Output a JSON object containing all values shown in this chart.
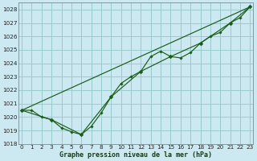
{
  "xlabel": "Graphe pression niveau de la mer (hPa)",
  "background_color": "#cce8f0",
  "grid_color": "#99cccc",
  "line_color": "#1a5c1a",
  "ylim": [
    1018,
    1028.5
  ],
  "xlim": [
    -0.3,
    23.3
  ],
  "yticks": [
    1018,
    1019,
    1020,
    1021,
    1022,
    1023,
    1024,
    1025,
    1026,
    1027,
    1028
  ],
  "xticks": [
    0,
    1,
    2,
    3,
    4,
    5,
    6,
    7,
    8,
    9,
    10,
    11,
    12,
    13,
    14,
    15,
    16,
    17,
    18,
    19,
    20,
    21,
    22,
    23
  ],
  "series_hourly": {
    "x": [
      0,
      1,
      2,
      3,
      4,
      5,
      6,
      7,
      8,
      9,
      10,
      11,
      12,
      13,
      14,
      15,
      16,
      17,
      18,
      19,
      20,
      21,
      22,
      23
    ],
    "y": [
      1020.5,
      1020.5,
      1020.0,
      1019.8,
      1019.2,
      1018.9,
      1018.7,
      1019.3,
      1020.3,
      1021.5,
      1022.5,
      1023.0,
      1023.4,
      1024.5,
      1024.9,
      1024.5,
      1024.4,
      1024.8,
      1025.5,
      1026.0,
      1026.3,
      1027.0,
      1027.4,
      1028.2
    ]
  },
  "series_synop": {
    "x": [
      0,
      3,
      6,
      9,
      12,
      15,
      18,
      21,
      23
    ],
    "y": [
      1020.5,
      1019.8,
      1018.7,
      1021.5,
      1023.4,
      1024.5,
      1025.5,
      1027.0,
      1028.2
    ]
  },
  "series_linear": {
    "x": [
      0,
      23
    ],
    "y": [
      1020.5,
      1028.2
    ]
  }
}
